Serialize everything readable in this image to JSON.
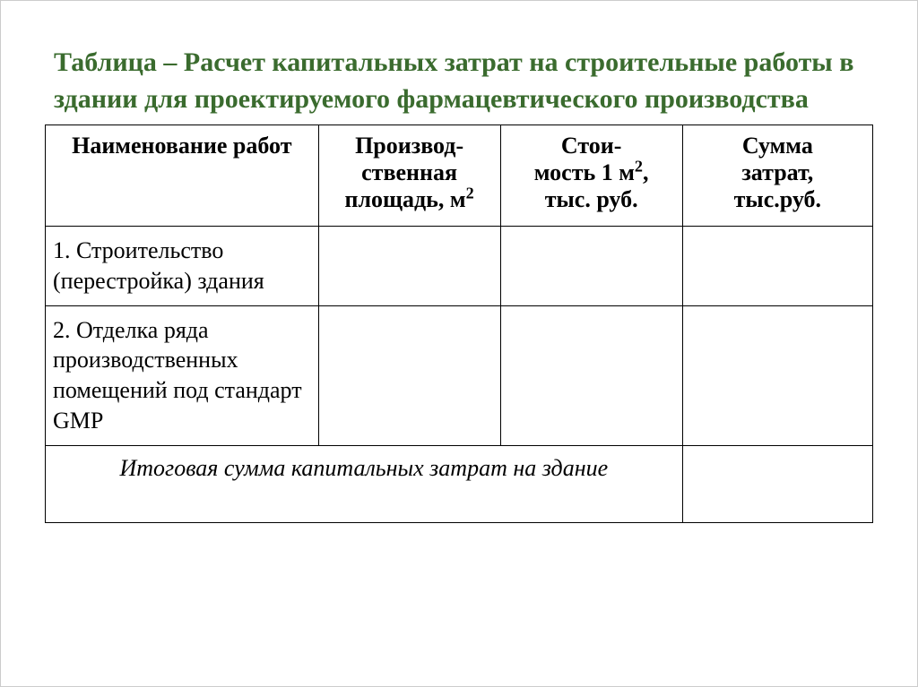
{
  "title": "Таблица  – Расчет капитальных затрат на строительные работы в здании для проектируемого фармацевтического производства",
  "title_color": "#3a6b2e",
  "title_fontsize": 30,
  "table": {
    "type": "table",
    "border_color": "#000000",
    "background_color": "#ffffff",
    "header_fontsize": 26,
    "cell_fontsize": 26,
    "columns": [
      {
        "label_html": "Наименование работ",
        "width_pct": 33,
        "align": "center"
      },
      {
        "label_html": "Производ-ственная площадь, м²",
        "width_pct": 22,
        "align": "center"
      },
      {
        "label_html": "Стои-мость 1 м², тыс. руб.",
        "width_pct": 22,
        "align": "center"
      },
      {
        "label_html": "Сумма затрат, тыс.руб.",
        "width_pct": 23,
        "align": "center"
      }
    ],
    "headers": {
      "h1": "Наименование работ",
      "h2_line1": "Производ-",
      "h2_line2": "ственная",
      "h2_line3_prefix": "площадь, м",
      "h2_line3_sup": "2",
      "h3_line1": "Стои-",
      "h3_line2_prefix": "мость 1 м",
      "h3_line2_sup": "2",
      "h3_line2_suffix": ",",
      "h3_line3": "тыс. руб.",
      "h4_line1": "Сумма",
      "h4_line2": "затрат,",
      "h4_line3": "тыс.руб."
    },
    "rows": [
      {
        "label": "1. Строительство (перестройка) здания",
        "area": "",
        "cost_per_m2": "",
        "total": ""
      },
      {
        "label": "2. Отделка ряда производственных помещений под стандарт GMP",
        "area": "",
        "cost_per_m2": "",
        "total": ""
      }
    ],
    "footer": {
      "label": "Итоговая сумма капитальных затрат на здание",
      "value": "",
      "colspan": 3,
      "style": "italic"
    }
  }
}
